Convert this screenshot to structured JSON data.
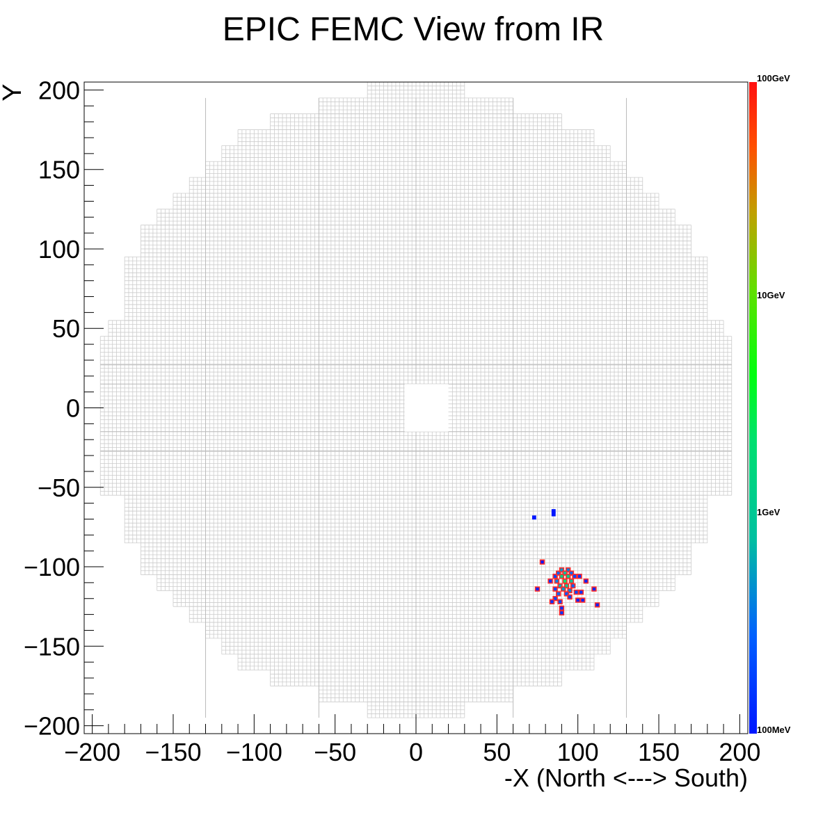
{
  "chart_data": {
    "type": "heatmap",
    "title": "EPIC FEMC View from IR",
    "xlabel": "-X (North <---> South)",
    "ylabel": "Y",
    "xlim": [
      -205,
      205
    ],
    "ylim": [
      -205,
      205
    ],
    "x_ticks": [
      -200,
      -150,
      -100,
      -50,
      0,
      50,
      100,
      150,
      200
    ],
    "y_ticks": [
      -200,
      -150,
      -100,
      -50,
      0,
      50,
      100,
      150,
      200
    ],
    "x_tick_labels": [
      "−200",
      "−150",
      "−100",
      "−50",
      "0",
      "50",
      "100",
      "150",
      "200"
    ],
    "y_tick_labels": [
      "−200",
      "−150",
      "−100",
      "−50",
      "0",
      "50",
      "100",
      "150",
      "200"
    ],
    "colorbar": {
      "scale": "log",
      "labels": [
        "100GeV",
        "10GeV",
        "1GeV",
        "100MeV"
      ]
    },
    "grid_color": "#cccccc",
    "cell_outline_color": "#ff2a2a",
    "detector_outline": {
      "row_height": 10,
      "rows": [
        {
          "y": [
            195,
            205
          ],
          "x": [
            -30,
            30
          ]
        },
        {
          "y": [
            185,
            195
          ],
          "x": [
            -60,
            60
          ]
        },
        {
          "y": [
            175,
            185
          ],
          "x": [
            -90,
            90
          ]
        },
        {
          "y": [
            165,
            175
          ],
          "x": [
            -110,
            110
          ]
        },
        {
          "y": [
            155,
            165
          ],
          "x": [
            -120,
            120
          ]
        },
        {
          "y": [
            145,
            155
          ],
          "x": [
            -130,
            130
          ]
        },
        {
          "y": [
            135,
            145
          ],
          "x": [
            -140,
            140
          ]
        },
        {
          "y": [
            125,
            135
          ],
          "x": [
            -150,
            150
          ]
        },
        {
          "y": [
            115,
            125
          ],
          "x": [
            -160,
            160
          ]
        },
        {
          "y": [
            105,
            115
          ],
          "x": [
            -170,
            170
          ]
        },
        {
          "y": [
            95,
            105
          ],
          "x": [
            -170,
            170
          ]
        },
        {
          "y": [
            85,
            95
          ],
          "x": [
            -180,
            180
          ]
        },
        {
          "y": [
            75,
            85
          ],
          "x": [
            -180,
            180
          ]
        },
        {
          "y": [
            65,
            75
          ],
          "x": [
            -180,
            180
          ]
        },
        {
          "y": [
            55,
            65
          ],
          "x": [
            -180,
            180
          ]
        },
        {
          "y": [
            45,
            55
          ],
          "x": [
            -190,
            190
          ]
        },
        {
          "y": [
            -55,
            45
          ],
          "x": [
            -195,
            195
          ]
        },
        {
          "y": [
            -65,
            -55
          ],
          "x": [
            -180,
            180
          ]
        },
        {
          "y": [
            -75,
            -65
          ],
          "x": [
            -180,
            180
          ]
        },
        {
          "y": [
            -85,
            -75
          ],
          "x": [
            -180,
            180
          ]
        },
        {
          "y": [
            -95,
            -85
          ],
          "x": [
            -170,
            170
          ]
        },
        {
          "y": [
            -105,
            -95
          ],
          "x": [
            -170,
            170
          ]
        },
        {
          "y": [
            -115,
            -105
          ],
          "x": [
            -160,
            160
          ]
        },
        {
          "y": [
            -125,
            -115
          ],
          "x": [
            -150,
            150
          ]
        },
        {
          "y": [
            -135,
            -125
          ],
          "x": [
            -140,
            140
          ]
        },
        {
          "y": [
            -145,
            -135
          ],
          "x": [
            -130,
            130
          ]
        },
        {
          "y": [
            -155,
            -145
          ],
          "x": [
            -120,
            120
          ]
        },
        {
          "y": [
            -165,
            -155
          ],
          "x": [
            -110,
            110
          ]
        },
        {
          "y": [
            -175,
            -165
          ],
          "x": [
            -90,
            90
          ]
        },
        {
          "y": [
            -185,
            -175
          ],
          "x": [
            -60,
            60
          ]
        },
        {
          "y": [
            -195,
            -185
          ],
          "x": [
            -30,
            30
          ]
        }
      ],
      "beam_hole": {
        "x": [
          -7,
          20
        ],
        "y": [
          -15,
          15
        ]
      },
      "cell_pitch": 2.5
    },
    "hits": [
      {
        "x": 73,
        "y": -69,
        "energy_gev": 0.1
      },
      {
        "x": 85,
        "y": -65,
        "energy_gev": 0.1
      },
      {
        "x": 85,
        "y": -67,
        "energy_gev": 0.1
      },
      {
        "x": 78,
        "y": -97,
        "energy_gev": 0.1
      },
      {
        "x": 75,
        "y": -114,
        "energy_gev": 0.12
      },
      {
        "x": 83,
        "y": -109,
        "energy_gev": 0.15
      },
      {
        "x": 86,
        "y": -106,
        "energy_gev": 0.2
      },
      {
        "x": 88,
        "y": -104,
        "energy_gev": 0.3
      },
      {
        "x": 90,
        "y": -102,
        "energy_gev": 0.5
      },
      {
        "x": 94,
        "y": -102,
        "energy_gev": 0.4
      },
      {
        "x": 96,
        "y": -104,
        "energy_gev": 0.3
      },
      {
        "x": 92,
        "y": -104,
        "energy_gev": 0.8
      },
      {
        "x": 90,
        "y": -106,
        "energy_gev": 1.5
      },
      {
        "x": 94,
        "y": -106,
        "energy_gev": 1.2
      },
      {
        "x": 98,
        "y": -106,
        "energy_gev": 0.2
      },
      {
        "x": 101,
        "y": -106,
        "energy_gev": 0.15
      },
      {
        "x": 87,
        "y": -109,
        "energy_gev": 0.4
      },
      {
        "x": 92,
        "y": -109,
        "energy_gev": 2.0
      },
      {
        "x": 96,
        "y": -109,
        "energy_gev": 0.9
      },
      {
        "x": 105,
        "y": -109,
        "energy_gev": 0.12
      },
      {
        "x": 89,
        "y": -112,
        "energy_gev": 0.6
      },
      {
        "x": 93,
        "y": -112,
        "energy_gev": 1.0
      },
      {
        "x": 97,
        "y": -112,
        "energy_gev": 0.3
      },
      {
        "x": 86,
        "y": -114,
        "energy_gev": 0.2
      },
      {
        "x": 91,
        "y": -114,
        "energy_gev": 0.5
      },
      {
        "x": 95,
        "y": -115,
        "energy_gev": 0.4
      },
      {
        "x": 99,
        "y": -116,
        "energy_gev": 0.2
      },
      {
        "x": 102,
        "y": -116,
        "energy_gev": 0.15
      },
      {
        "x": 110,
        "y": -114,
        "energy_gev": 0.12
      },
      {
        "x": 88,
        "y": -117,
        "energy_gev": 0.3
      },
      {
        "x": 93,
        "y": -117,
        "energy_gev": 0.25
      },
      {
        "x": 86,
        "y": -120,
        "energy_gev": 0.2
      },
      {
        "x": 95,
        "y": -119,
        "energy_gev": 0.2
      },
      {
        "x": 84,
        "y": -122,
        "energy_gev": 0.15
      },
      {
        "x": 89,
        "y": -122,
        "energy_gev": 0.2
      },
      {
        "x": 100,
        "y": -121,
        "energy_gev": 0.12
      },
      {
        "x": 103,
        "y": -121,
        "energy_gev": 0.12
      },
      {
        "x": 112,
        "y": -124,
        "energy_gev": 0.12
      },
      {
        "x": 90,
        "y": -126,
        "energy_gev": 0.15
      },
      {
        "x": 90,
        "y": -129,
        "energy_gev": 0.15
      }
    ]
  }
}
